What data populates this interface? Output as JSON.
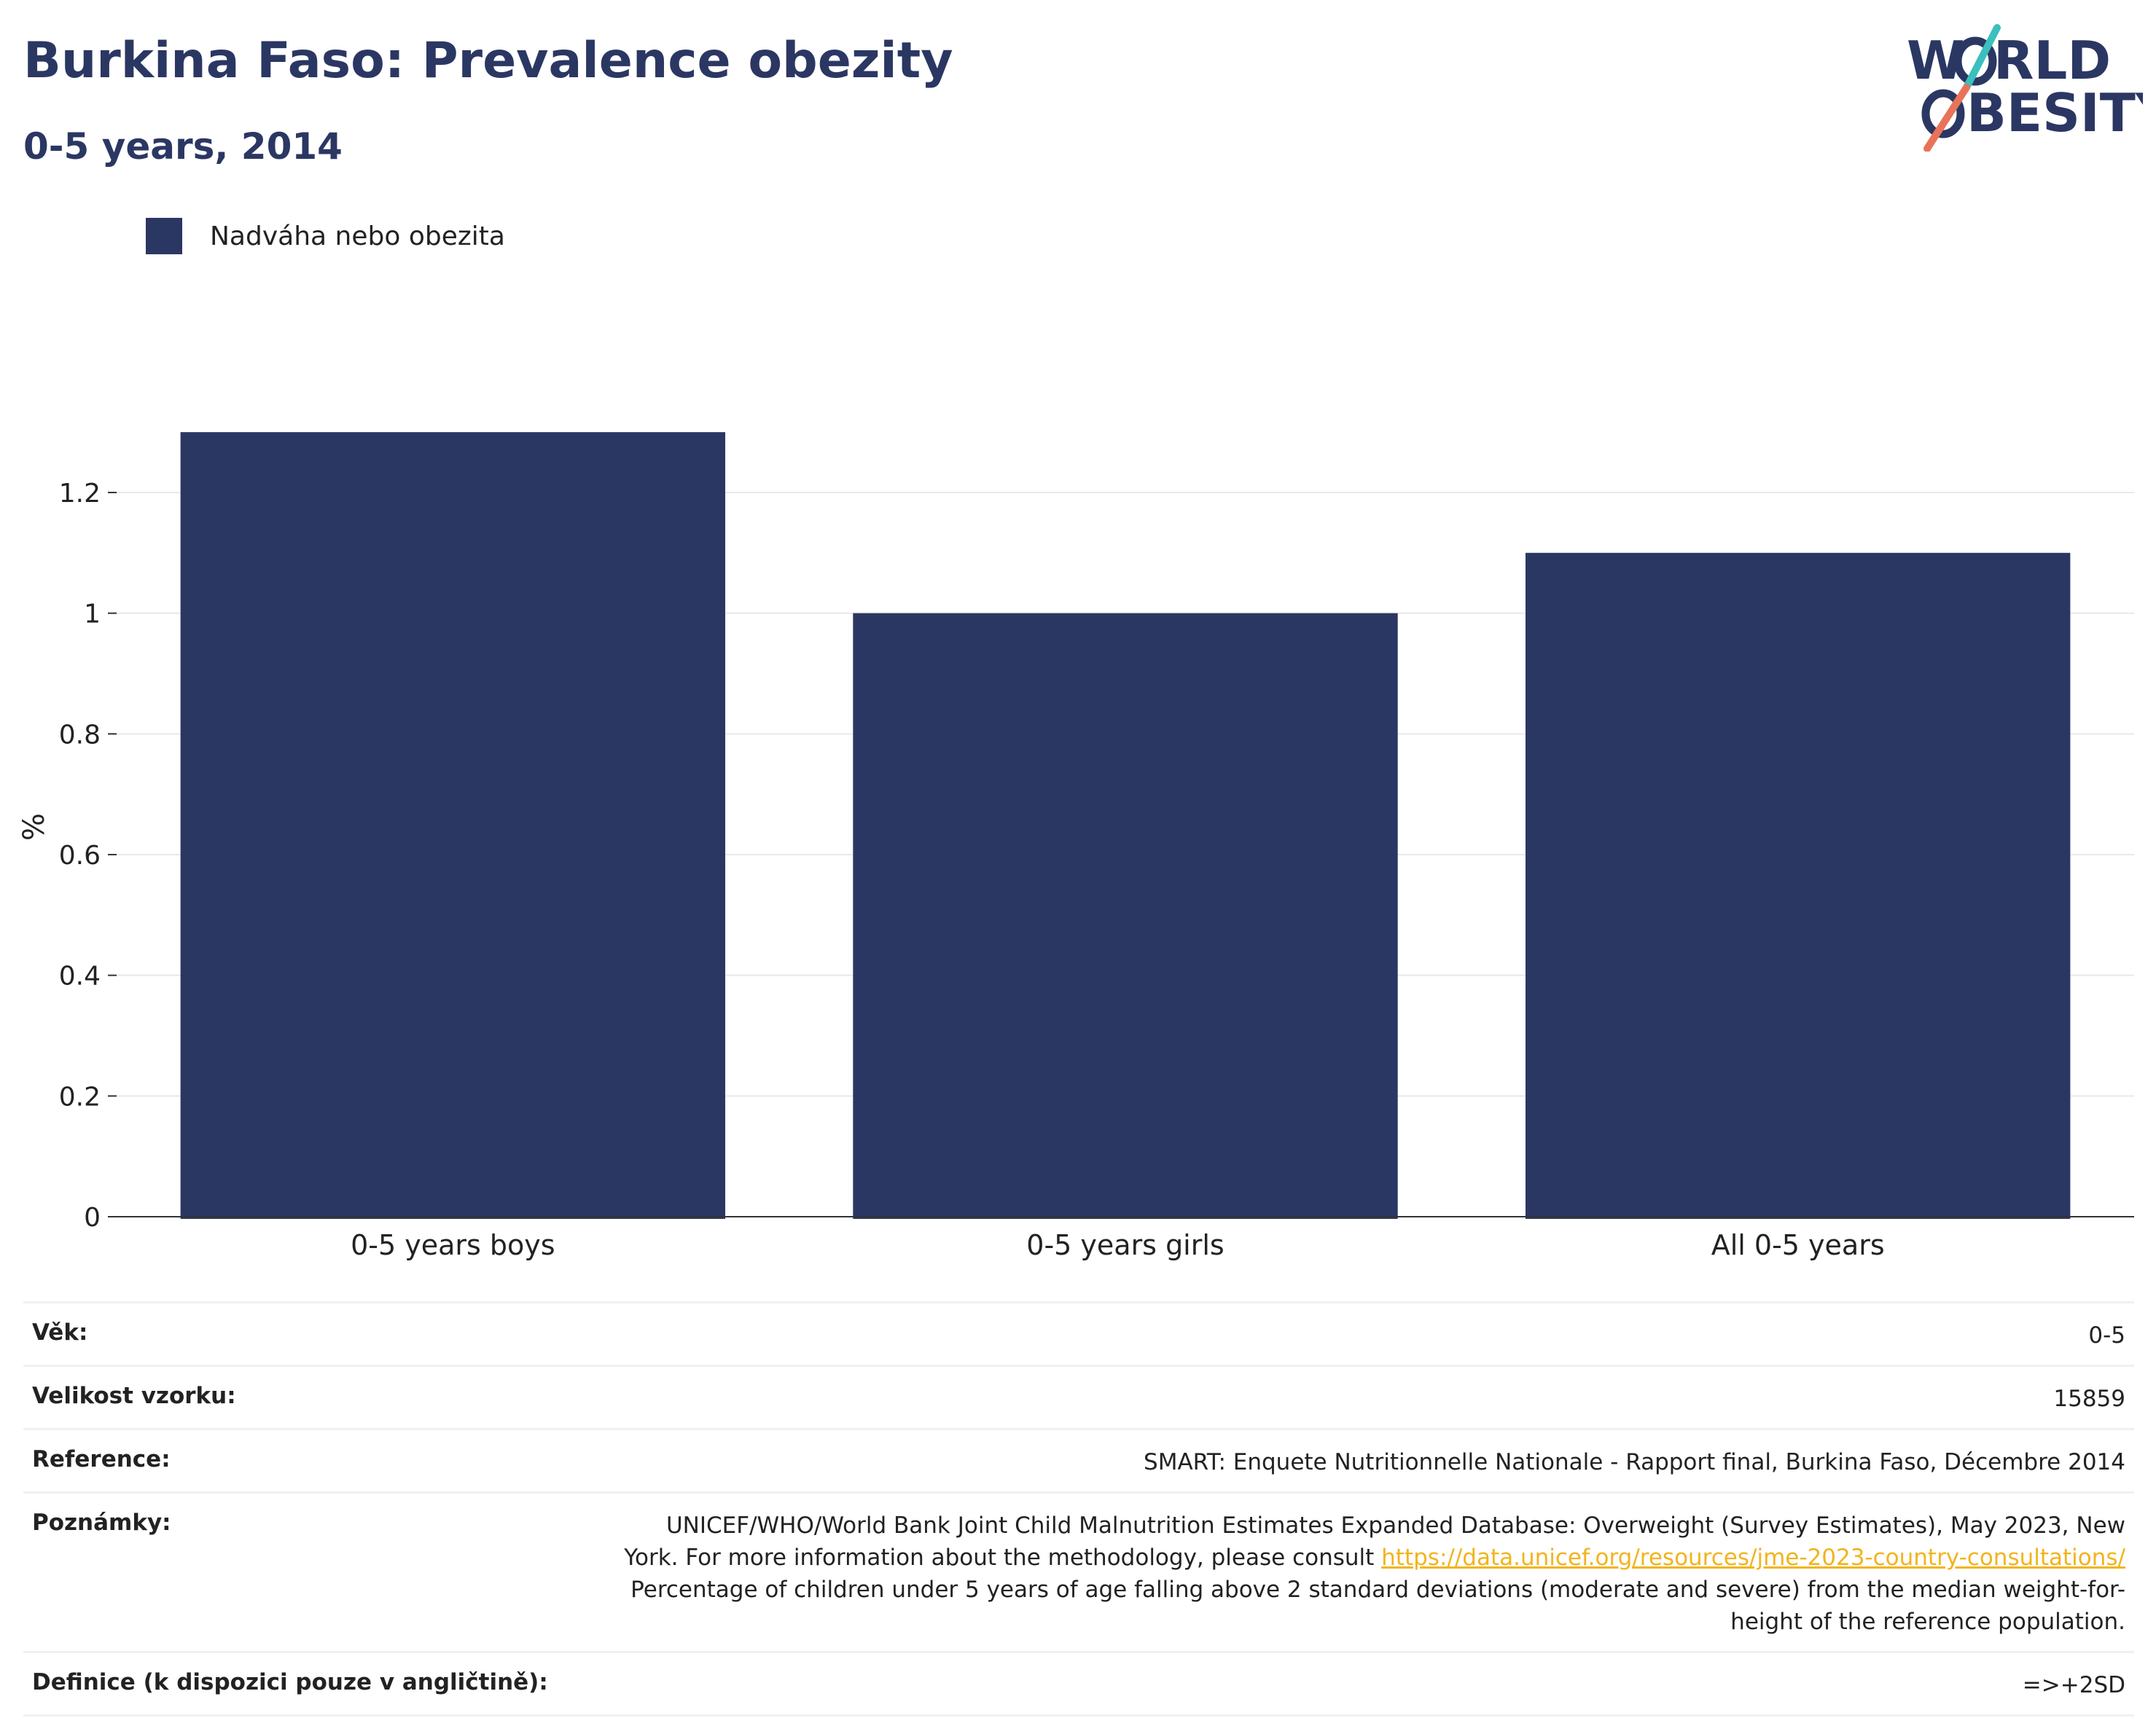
{
  "header": {
    "title": "Burkina Faso: Prevalence obezity",
    "subtitle": "0-5 years, 2014"
  },
  "logo": {
    "line1": "W RLD",
    "line2": "BESITY",
    "line1_prefix": "W",
    "line1_suffix": "RLD",
    "line2_prefix": "",
    "line2_suffix": "BESITY",
    "colors": {
      "text": "#2b3763",
      "teal": "#3bbfbf",
      "coral": "#e8735a"
    }
  },
  "legend": {
    "label": "Nadváha nebo obezita",
    "color": "#2b3763"
  },
  "chart_data": {
    "type": "bar",
    "categories": [
      "0-5 years boys",
      "0-5 years girls",
      "All 0-5 years"
    ],
    "series": [
      {
        "name": "Nadváha nebo obezita",
        "values": [
          1.3,
          1.0,
          1.1
        ],
        "color": "#2b3763"
      }
    ],
    "ylabel": "%",
    "ylim": [
      0,
      1.34
    ],
    "yticks": [
      0,
      0.2,
      0.4,
      0.6,
      0.8,
      1,
      1.2
    ],
    "ytick_labels": [
      "0",
      "0.2",
      "0.4",
      "0.6",
      "0.8",
      "1",
      "1.2"
    ],
    "grid": true,
    "legend_position": "top-left"
  },
  "info": {
    "rows": [
      {
        "key": "Věk:",
        "value": "0-5"
      },
      {
        "key": "Velikost vzorku:",
        "value": "15859"
      },
      {
        "key": "Reference:",
        "value": "SMART: Enquete Nutritionnelle Nationale - Rapport final, Burkina Faso, Décembre 2014"
      }
    ],
    "notes": {
      "key": "Poznámky:",
      "line1": "UNICEF/WHO/World Bank Joint Child Malnutrition Estimates Expanded Database: Overweight (Survey Estimates), May 2023, New",
      "line2_prefix": "York. For more information about the methodology, please consult ",
      "link": "https://data.unicef.org/resources/jme-2023-country-consultations/",
      "line3": "Percentage of children under 5 years of age falling above 2 standard deviations (moderate and severe) from the median weight-for-",
      "line4": "height of the reference population."
    },
    "definition": {
      "key": "Definice (k dispozici pouze v angličtině):",
      "value": "=>+2SD"
    }
  }
}
